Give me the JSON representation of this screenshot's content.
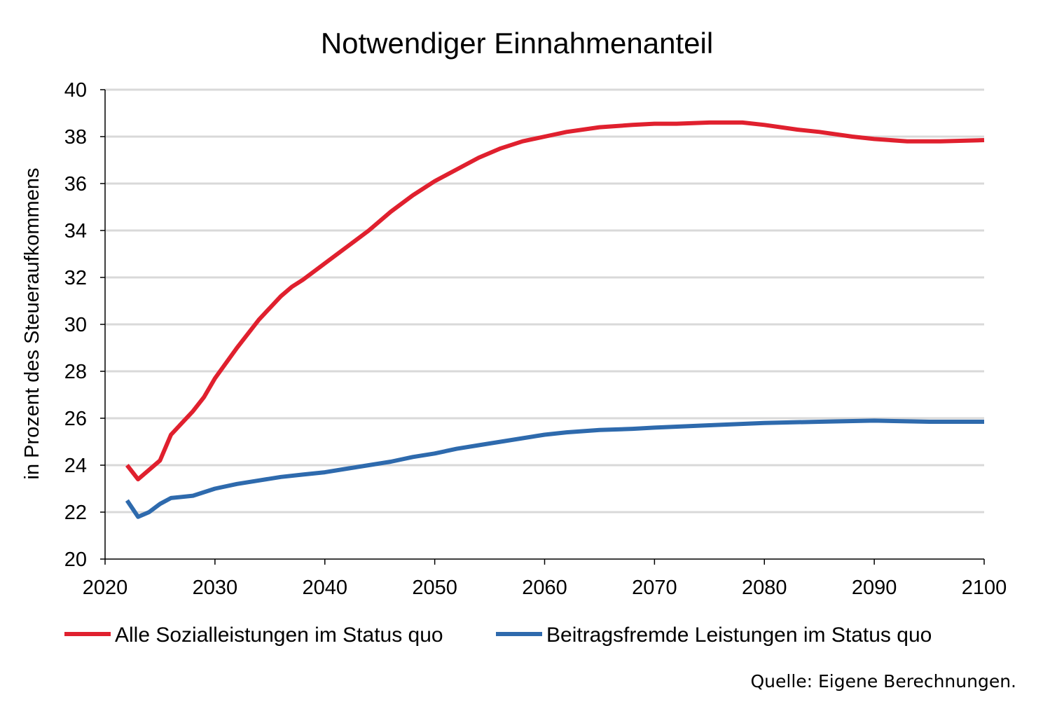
{
  "chart_data": {
    "type": "line",
    "title": "Notwendiger Einnahmenanteil",
    "xlabel": "",
    "ylabel": "in Prozent des Steueraufkommens",
    "xlim": [
      2020,
      2100
    ],
    "ylim": [
      20,
      40
    ],
    "xticks": [
      2020,
      2030,
      2040,
      2050,
      2060,
      2070,
      2080,
      2090,
      2100
    ],
    "yticks": [
      20,
      22,
      24,
      26,
      28,
      30,
      32,
      34,
      36,
      38,
      40
    ],
    "grid": "horizontal",
    "legend_position": "bottom",
    "series": [
      {
        "name": "Alle Sozialleistungen im Status quo",
        "color": "#e0202e",
        "x": [
          2022,
          2023,
          2024,
          2025,
          2026,
          2027,
          2028,
          2029,
          2030,
          2032,
          2034,
          2036,
          2037,
          2038,
          2040,
          2042,
          2044,
          2046,
          2048,
          2050,
          2052,
          2054,
          2056,
          2058,
          2060,
          2062,
          2065,
          2068,
          2070,
          2072,
          2075,
          2078,
          2080,
          2083,
          2085,
          2088,
          2090,
          2093,
          2096,
          2100
        ],
        "y": [
          24.0,
          23.4,
          23.8,
          24.2,
          25.3,
          25.8,
          26.3,
          26.9,
          27.7,
          29.0,
          30.2,
          31.2,
          31.6,
          31.9,
          32.6,
          33.3,
          34.0,
          34.8,
          35.5,
          36.1,
          36.6,
          37.1,
          37.5,
          37.8,
          38.0,
          38.2,
          38.4,
          38.5,
          38.55,
          38.55,
          38.6,
          38.6,
          38.5,
          38.3,
          38.2,
          38.0,
          37.9,
          37.8,
          37.8,
          37.85
        ]
      },
      {
        "name": "Beitragsfremde Leistungen im Status quo",
        "color": "#2e6aad",
        "x": [
          2022,
          2023,
          2024,
          2025,
          2026,
          2028,
          2030,
          2032,
          2034,
          2036,
          2038,
          2040,
          2042,
          2044,
          2046,
          2048,
          2050,
          2052,
          2054,
          2056,
          2058,
          2060,
          2062,
          2065,
          2068,
          2070,
          2075,
          2080,
          2085,
          2090,
          2095,
          2100
        ],
        "y": [
          22.5,
          21.8,
          22.0,
          22.35,
          22.6,
          22.7,
          23.0,
          23.2,
          23.35,
          23.5,
          23.6,
          23.7,
          23.85,
          24.0,
          24.15,
          24.35,
          24.5,
          24.7,
          24.85,
          25.0,
          25.15,
          25.3,
          25.4,
          25.5,
          25.55,
          25.6,
          25.7,
          25.8,
          25.85,
          25.9,
          25.85,
          25.85
        ]
      }
    ]
  },
  "source_note": "Quelle: Eigene Berechnungen."
}
